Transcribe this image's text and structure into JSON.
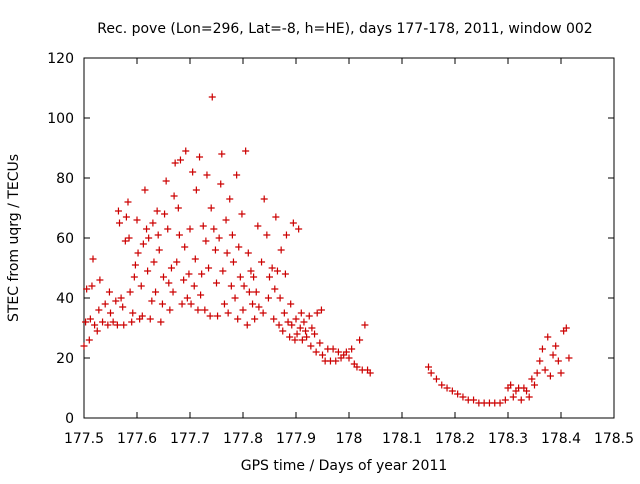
{
  "chart_data": {
    "type": "scatter",
    "title": "Rec. pove (Lon=296, Lat=-8, h=HE), days 177-178, 2011, window 002",
    "xlabel": "GPS time / Days of year 2011",
    "ylabel": "STEC from uqrg / TECUs",
    "xlim": [
      177.5,
      178.5
    ],
    "ylim": [
      0,
      120
    ],
    "x_ticks": [
      177.5,
      177.6,
      177.7,
      177.8,
      177.9,
      178.0,
      178.1,
      178.2,
      178.3,
      178.4,
      178.5
    ],
    "x_tick_labels": [
      "177.5",
      "177.6",
      "177.7",
      "177.8",
      "177.9",
      "178",
      "178.1",
      "178.2",
      "178.3",
      "178.4",
      "178.5"
    ],
    "y_ticks": [
      0,
      20,
      40,
      60,
      80,
      100,
      120
    ],
    "y_tick_labels": [
      "0",
      "20",
      "40",
      "60",
      "80",
      "100",
      "120"
    ],
    "grid": false,
    "marker": "+",
    "colors": {
      "points": "#cc0000",
      "axes": "#000000"
    },
    "series": [
      {
        "points": [
          [
            177.5,
            24
          ],
          [
            177.503,
            32
          ],
          [
            177.505,
            43
          ],
          [
            177.51,
            26
          ],
          [
            177.512,
            33
          ],
          [
            177.515,
            44
          ],
          [
            177.517,
            53
          ],
          [
            177.52,
            31
          ],
          [
            177.525,
            29
          ],
          [
            177.528,
            36
          ],
          [
            177.53,
            46
          ],
          [
            177.535,
            32
          ],
          [
            177.54,
            38
          ],
          [
            177.545,
            31
          ],
          [
            177.548,
            42
          ],
          [
            177.55,
            35
          ],
          [
            177.555,
            32
          ],
          [
            177.56,
            39
          ],
          [
            177.563,
            31
          ],
          [
            177.565,
            69
          ],
          [
            177.567,
            65
          ],
          [
            177.57,
            40
          ],
          [
            177.573,
            37
          ],
          [
            177.575,
            31
          ],
          [
            177.578,
            59
          ],
          [
            177.58,
            67
          ],
          [
            177.583,
            72
          ],
          [
            177.585,
            60
          ],
          [
            177.587,
            42
          ],
          [
            177.59,
            32
          ],
          [
            177.592,
            35
          ],
          [
            177.595,
            47
          ],
          [
            177.597,
            51
          ],
          [
            177.6,
            66
          ],
          [
            177.602,
            55
          ],
          [
            177.605,
            33
          ],
          [
            177.608,
            44
          ],
          [
            177.61,
            34
          ],
          [
            177.612,
            58
          ],
          [
            177.615,
            76
          ],
          [
            177.618,
            63
          ],
          [
            177.62,
            49
          ],
          [
            177.622,
            60
          ],
          [
            177.625,
            33
          ],
          [
            177.628,
            39
          ],
          [
            177.63,
            65
          ],
          [
            177.632,
            52
          ],
          [
            177.635,
            42
          ],
          [
            177.638,
            69
          ],
          [
            177.64,
            61
          ],
          [
            177.642,
            56
          ],
          [
            177.645,
            32
          ],
          [
            177.648,
            38
          ],
          [
            177.65,
            47
          ],
          [
            177.652,
            68
          ],
          [
            177.655,
            79
          ],
          [
            177.658,
            63
          ],
          [
            177.66,
            45
          ],
          [
            177.662,
            36
          ],
          [
            177.665,
            50
          ],
          [
            177.668,
            42
          ],
          [
            177.67,
            74
          ],
          [
            177.672,
            85
          ],
          [
            177.675,
            52
          ],
          [
            177.678,
            70
          ],
          [
            177.68,
            61
          ],
          [
            177.682,
            86
          ],
          [
            177.685,
            38
          ],
          [
            177.688,
            46
          ],
          [
            177.69,
            57
          ],
          [
            177.692,
            89
          ],
          [
            177.695,
            40
          ],
          [
            177.698,
            48
          ],
          [
            177.7,
            63
          ],
          [
            177.702,
            38
          ],
          [
            177.705,
            82
          ],
          [
            177.708,
            44
          ],
          [
            177.71,
            53
          ],
          [
            177.712,
            76
          ],
          [
            177.715,
            36
          ],
          [
            177.718,
            87
          ],
          [
            177.72,
            41
          ],
          [
            177.722,
            48
          ],
          [
            177.725,
            64
          ],
          [
            177.728,
            36
          ],
          [
            177.73,
            59
          ],
          [
            177.732,
            81
          ],
          [
            177.735,
            50
          ],
          [
            177.738,
            34
          ],
          [
            177.74,
            70
          ],
          [
            177.742,
            107
          ],
          [
            177.745,
            63
          ],
          [
            177.748,
            56
          ],
          [
            177.75,
            45
          ],
          [
            177.752,
            34
          ],
          [
            177.755,
            60
          ],
          [
            177.758,
            78
          ],
          [
            177.76,
            88
          ],
          [
            177.762,
            49
          ],
          [
            177.765,
            38
          ],
          [
            177.768,
            66
          ],
          [
            177.77,
            55
          ],
          [
            177.772,
            35
          ],
          [
            177.775,
            73
          ],
          [
            177.778,
            44
          ],
          [
            177.78,
            61
          ],
          [
            177.782,
            52
          ],
          [
            177.785,
            40
          ],
          [
            177.788,
            81
          ],
          [
            177.79,
            33
          ],
          [
            177.792,
            57
          ],
          [
            177.795,
            47
          ],
          [
            177.798,
            68
          ],
          [
            177.8,
            36
          ],
          [
            177.802,
            44
          ],
          [
            177.805,
            89
          ],
          [
            177.808,
            31
          ],
          [
            177.81,
            55
          ],
          [
            177.812,
            42
          ],
          [
            177.815,
            49
          ],
          [
            177.818,
            38
          ],
          [
            177.82,
            47
          ],
          [
            177.822,
            33
          ],
          [
            177.825,
            42
          ],
          [
            177.828,
            64
          ],
          [
            177.83,
            37
          ],
          [
            177.835,
            52
          ],
          [
            177.838,
            35
          ],
          [
            177.84,
            73
          ],
          [
            177.845,
            61
          ],
          [
            177.848,
            40
          ],
          [
            177.85,
            47
          ],
          [
            177.855,
            50
          ],
          [
            177.858,
            33
          ],
          [
            177.86,
            43
          ],
          [
            177.862,
            67
          ],
          [
            177.865,
            49
          ],
          [
            177.868,
            31
          ],
          [
            177.87,
            40
          ],
          [
            177.872,
            56
          ],
          [
            177.875,
            29
          ],
          [
            177.878,
            35
          ],
          [
            177.88,
            48
          ],
          [
            177.882,
            61
          ],
          [
            177.885,
            32
          ],
          [
            177.888,
            27
          ],
          [
            177.89,
            38
          ],
          [
            177.892,
            31
          ],
          [
            177.895,
            65
          ],
          [
            177.898,
            26
          ],
          [
            177.9,
            33
          ],
          [
            177.902,
            28
          ],
          [
            177.905,
            63
          ],
          [
            177.908,
            30
          ],
          [
            177.91,
            35
          ],
          [
            177.912,
            26
          ],
          [
            177.915,
            32
          ],
          [
            177.918,
            29
          ],
          [
            177.92,
            27
          ],
          [
            177.925,
            34
          ],
          [
            177.928,
            24
          ],
          [
            177.93,
            30
          ],
          [
            177.935,
            28
          ],
          [
            177.938,
            22
          ],
          [
            177.94,
            35
          ],
          [
            177.945,
            25
          ],
          [
            177.948,
            36
          ],
          [
            177.95,
            21
          ],
          [
            177.955,
            19
          ],
          [
            177.96,
            23
          ],
          [
            177.965,
            19
          ],
          [
            177.97,
            23
          ],
          [
            177.975,
            19
          ],
          [
            177.98,
            22
          ],
          [
            177.985,
            20
          ],
          [
            177.99,
            21
          ],
          [
            177.995,
            22
          ],
          [
            178.0,
            20
          ],
          [
            178.005,
            23
          ],
          [
            178.01,
            18
          ],
          [
            178.015,
            17
          ],
          [
            178.02,
            26
          ],
          [
            178.025,
            16
          ],
          [
            178.03,
            31
          ],
          [
            178.035,
            16
          ],
          [
            178.04,
            15
          ],
          [
            178.15,
            17
          ],
          [
            178.155,
            15
          ],
          [
            178.165,
            13
          ],
          [
            178.175,
            11
          ],
          [
            178.185,
            10
          ],
          [
            178.195,
            9
          ],
          [
            178.205,
            8
          ],
          [
            178.215,
            7
          ],
          [
            178.225,
            6
          ],
          [
            178.235,
            6
          ],
          [
            178.245,
            5
          ],
          [
            178.255,
            5
          ],
          [
            178.265,
            5
          ],
          [
            178.275,
            5
          ],
          [
            178.285,
            5
          ],
          [
            178.295,
            6
          ],
          [
            178.3,
            10
          ],
          [
            178.305,
            11
          ],
          [
            178.31,
            7
          ],
          [
            178.315,
            9
          ],
          [
            178.32,
            10
          ],
          [
            178.325,
            6
          ],
          [
            178.33,
            10
          ],
          [
            178.335,
            9
          ],
          [
            178.34,
            7
          ],
          [
            178.345,
            13
          ],
          [
            178.35,
            11
          ],
          [
            178.355,
            15
          ],
          [
            178.36,
            19
          ],
          [
            178.365,
            23
          ],
          [
            178.37,
            16
          ],
          [
            178.375,
            27
          ],
          [
            178.38,
            14
          ],
          [
            178.385,
            21
          ],
          [
            178.39,
            24
          ],
          [
            178.395,
            19
          ],
          [
            178.4,
            15
          ],
          [
            178.405,
            29
          ],
          [
            178.41,
            30
          ],
          [
            178.415,
            20
          ]
        ]
      }
    ]
  }
}
